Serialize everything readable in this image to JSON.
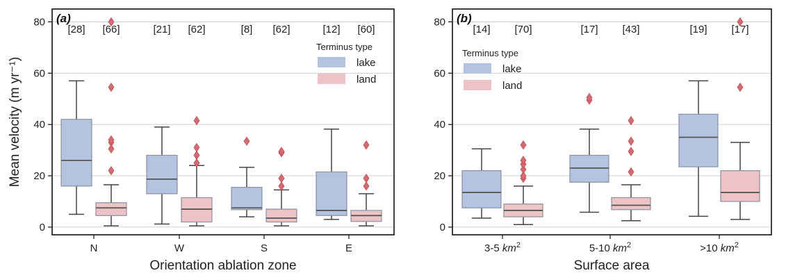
{
  "chart_data": [
    {
      "type": "box",
      "panel": "(a)",
      "xlabel": "Orientation ablation zone",
      "ylabel": "Mean velocity (m yr⁻¹)",
      "ylim": [
        -3,
        85
      ],
      "yticks": [
        0,
        20,
        40,
        60,
        80
      ],
      "grid": "horizontal",
      "categories": [
        "N",
        "W",
        "S",
        "E"
      ],
      "counts": {
        "lake": [
          "[28]",
          "[21]",
          "[8]",
          "[12]"
        ],
        "land": [
          "[66]",
          "[62]",
          "[62]",
          "[60]"
        ]
      },
      "legend": {
        "title": "Terminus type",
        "placement": "top-right",
        "entries": [
          "lake",
          "land"
        ]
      },
      "series": [
        {
          "name": "lake",
          "color": "#b4c4e0",
          "boxes": [
            {
              "whislo": 5,
              "q1": 16,
              "med": 26,
              "q3": 42,
              "whishi": 57,
              "fliers": []
            },
            {
              "whislo": 1.2,
              "q1": 13,
              "med": 18.7,
              "q3": 28,
              "whishi": 39,
              "fliers": []
            },
            {
              "whislo": 4,
              "q1": 6.8,
              "med": 7.5,
              "q3": 15.5,
              "whishi": 23.3,
              "fliers": [
                33.5
              ]
            },
            {
              "whislo": 3,
              "q1": 4.5,
              "med": 6.5,
              "q3": 21.5,
              "whishi": 38.2,
              "fliers": []
            }
          ]
        },
        {
          "name": "land",
          "color": "#edc3c6",
          "boxes": [
            {
              "whislo": 0.5,
              "q1": 4.5,
              "med": 7.5,
              "q3": 9.5,
              "whishi": 16.5,
              "fliers": [
                22,
                30.5,
                33,
                34,
                54.5,
                80
              ]
            },
            {
              "whislo": 0.5,
              "q1": 2,
              "med": 7,
              "q3": 11.5,
              "whishi": 24,
              "fliers": [
                25,
                28,
                31,
                41.5
              ]
            },
            {
              "whislo": 0.5,
              "q1": 2,
              "med": 3.5,
              "q3": 7,
              "whishi": 14.5,
              "fliers": [
                16,
                19,
                29,
                29.5
              ]
            },
            {
              "whislo": 0.5,
              "q1": 2.2,
              "med": 4.5,
              "q3": 6.5,
              "whishi": 13,
              "fliers": [
                16,
                19,
                32
              ]
            }
          ]
        }
      ]
    },
    {
      "type": "box",
      "panel": "(b)",
      "xlabel": "Surface area",
      "ylabel": "",
      "ylim": [
        -3,
        85
      ],
      "yticks": [
        0,
        20,
        40,
        60,
        80
      ],
      "grid": "horizontal",
      "categories": [
        "3-5 km²",
        "5-10 km²",
        ">10 km²"
      ],
      "category_parts": [
        {
          "pre": "3-5 ",
          "unit": "km",
          "sup": "2"
        },
        {
          "pre": "5-10 ",
          "unit": "km",
          "sup": "2"
        },
        {
          "pre": ">10 ",
          "unit": "km",
          "sup": "2"
        }
      ],
      "counts": {
        "lake": [
          "[14]",
          "[17]",
          "[19]"
        ],
        "land": [
          "[70]",
          "[43]",
          "[17]"
        ]
      },
      "legend": {
        "title": "Terminus type",
        "placement": "top-left",
        "entries": [
          "lake",
          "land"
        ]
      },
      "series": [
        {
          "name": "lake",
          "color": "#b4c4e0",
          "boxes": [
            {
              "whislo": 3.5,
              "q1": 7.5,
              "med": 13.5,
              "q3": 22,
              "whishi": 30.5,
              "fliers": []
            },
            {
              "whislo": 5.8,
              "q1": 17.5,
              "med": 23,
              "q3": 28,
              "whishi": 38.2,
              "fliers": [
                49.5,
                50.5
              ]
            },
            {
              "whislo": 4.2,
              "q1": 23.5,
              "med": 35,
              "q3": 44,
              "whishi": 57,
              "fliers": []
            }
          ]
        },
        {
          "name": "land",
          "color": "#edc3c6",
          "boxes": [
            {
              "whislo": 1,
              "q1": 4,
              "med": 6.5,
              "q3": 9,
              "whishi": 16,
              "fliers": [
                19,
                20,
                22.5,
                24.5,
                26,
                32
              ]
            },
            {
              "whislo": 2.5,
              "q1": 6.8,
              "med": 8.5,
              "q3": 11.5,
              "whishi": 16.5,
              "fliers": [
                21.5,
                29.5,
                33.5,
                41.5
              ]
            },
            {
              "whislo": 3,
              "q1": 10,
              "med": 13.5,
              "q3": 22,
              "whishi": 33,
              "fliers": [
                54.5,
                80
              ]
            }
          ]
        }
      ]
    }
  ]
}
